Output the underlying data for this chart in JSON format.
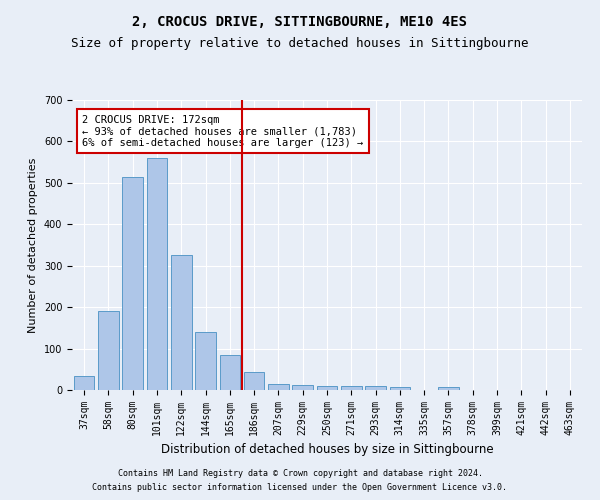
{
  "title": "2, CROCUS DRIVE, SITTINGBOURNE, ME10 4ES",
  "subtitle": "Size of property relative to detached houses in Sittingbourne",
  "xlabel": "Distribution of detached houses by size in Sittingbourne",
  "ylabel": "Number of detached properties",
  "footer1": "Contains HM Land Registry data © Crown copyright and database right 2024.",
  "footer2": "Contains public sector information licensed under the Open Government Licence v3.0.",
  "categories": [
    "37sqm",
    "58sqm",
    "80sqm",
    "101sqm",
    "122sqm",
    "144sqm",
    "165sqm",
    "186sqm",
    "207sqm",
    "229sqm",
    "250sqm",
    "271sqm",
    "293sqm",
    "314sqm",
    "335sqm",
    "357sqm",
    "378sqm",
    "399sqm",
    "421sqm",
    "442sqm",
    "463sqm"
  ],
  "values": [
    33,
    190,
    515,
    560,
    327,
    140,
    84,
    44,
    15,
    12,
    10,
    10,
    10,
    7,
    0,
    7,
    0,
    0,
    0,
    0,
    0
  ],
  "bar_color": "#aec6e8",
  "bar_edge_color": "#5a9bc9",
  "bg_color": "#e8eef7",
  "grid_color": "#ffffff",
  "vline_color": "#cc0000",
  "annotation_text": "2 CROCUS DRIVE: 172sqm\n← 93% of detached houses are smaller (1,783)\n6% of semi-detached houses are larger (123) →",
  "annotation_box_color": "#cc0000",
  "ylim": [
    0,
    700
  ],
  "yticks": [
    0,
    100,
    200,
    300,
    400,
    500,
    600,
    700
  ],
  "title_fontsize": 10,
  "subtitle_fontsize": 9,
  "tick_fontsize": 7,
  "ylabel_fontsize": 8,
  "xlabel_fontsize": 8.5,
  "annotation_fontsize": 7.5,
  "footer_fontsize": 6
}
